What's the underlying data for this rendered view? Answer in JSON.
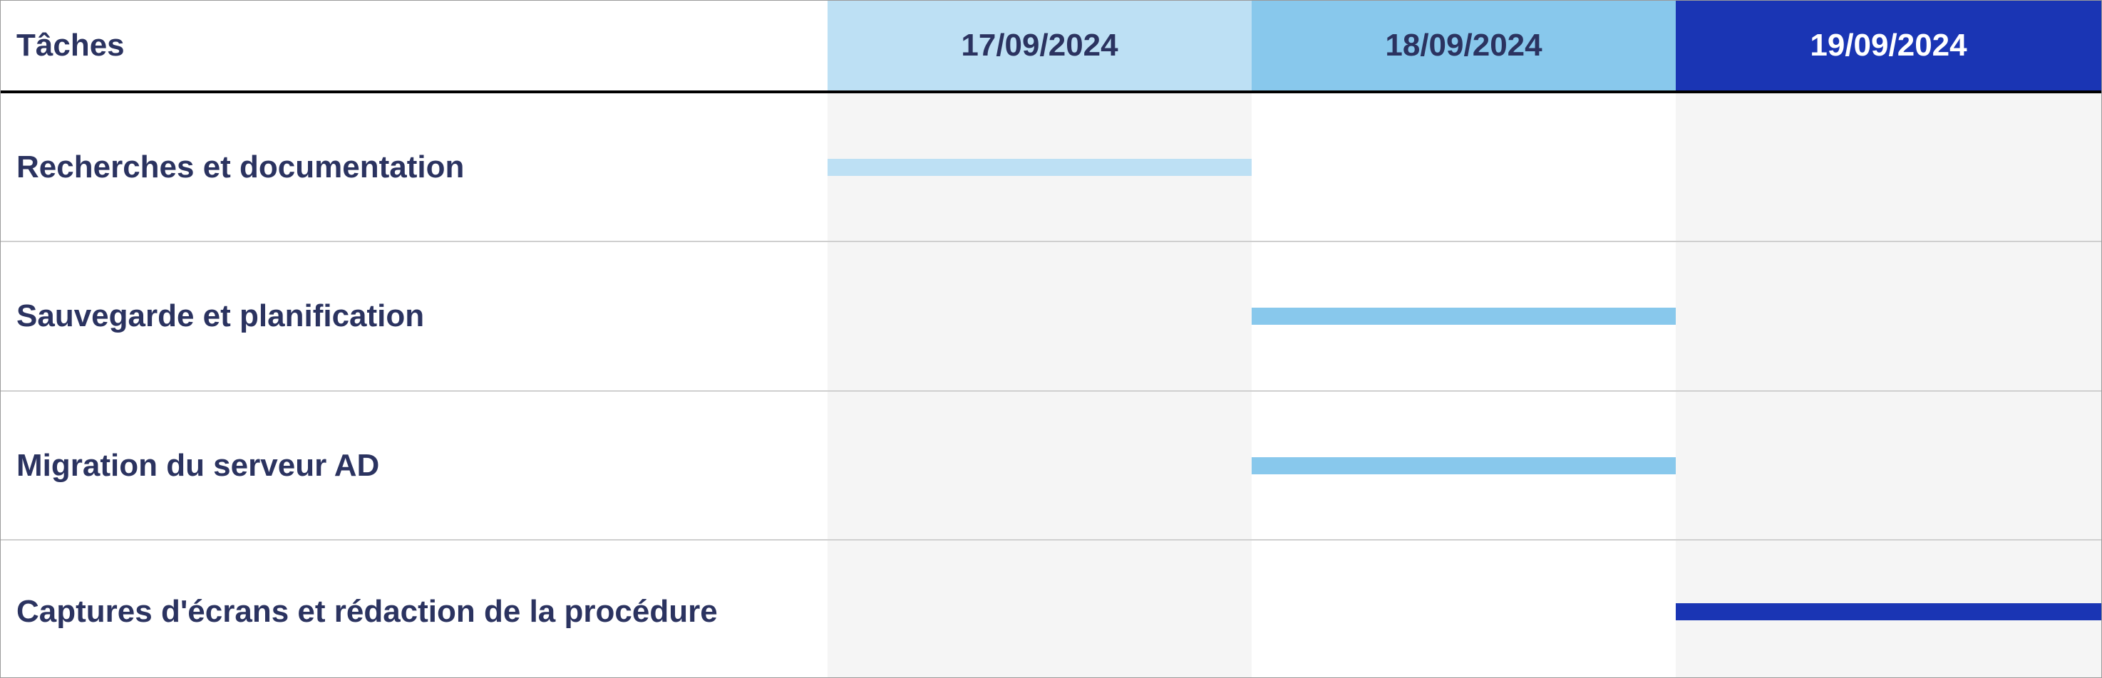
{
  "chart_data": {
    "type": "gantt",
    "header_label": "Tâches",
    "dates": [
      "17/09/2024",
      "18/09/2024",
      "19/09/2024"
    ],
    "date_colors": [
      {
        "bg": "#bde0f4",
        "fg": "#2b3360"
      },
      {
        "bg": "#88c8ec",
        "fg": "#2b3360"
      },
      {
        "bg": "#1a35b4",
        "fg": "#ffffff"
      }
    ],
    "tasks": [
      {
        "label": "Recherches et documentation",
        "start": "17/09/2024",
        "end": "17/09/2024",
        "color": "#bde0f4"
      },
      {
        "label": "Sauvegarde et planification",
        "start": "18/09/2024",
        "end": "18/09/2024",
        "color": "#88c8ec"
      },
      {
        "label": "Migration du serveur AD",
        "start": "18/09/2024",
        "end": "18/09/2024",
        "color": "#88c8ec"
      },
      {
        "label": "Captures d'écrans et rédaction de la procédure",
        "start": "19/09/2024",
        "end": "19/09/2024",
        "color": "#1a35b4"
      }
    ]
  }
}
